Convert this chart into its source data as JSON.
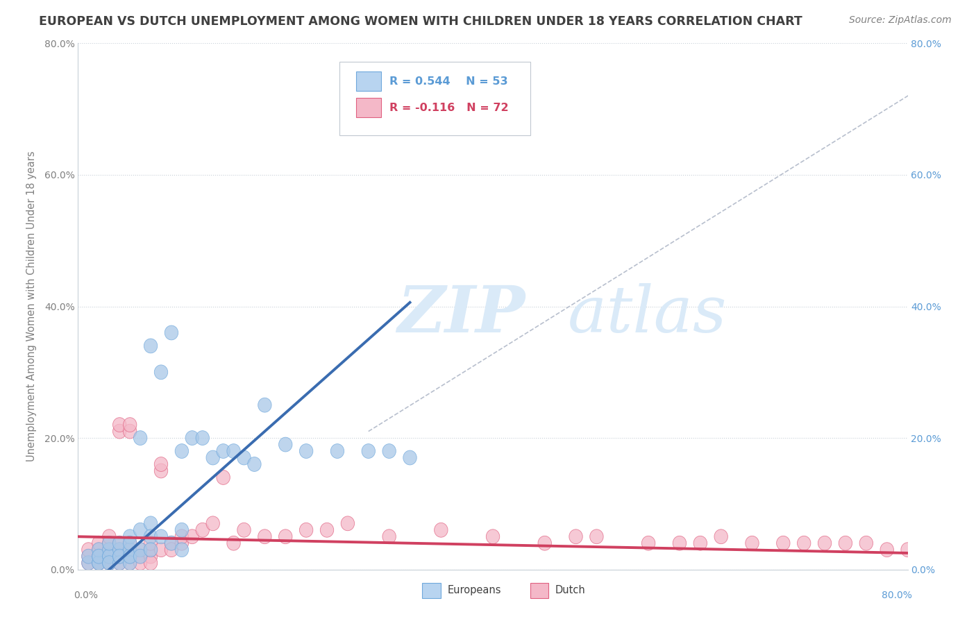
{
  "title": "EUROPEAN VS DUTCH UNEMPLOYMENT AMONG WOMEN WITH CHILDREN UNDER 18 YEARS CORRELATION CHART",
  "source": "Source: ZipAtlas.com",
  "ylabel": "Unemployment Among Women with Children Under 18 years",
  "xmin": 0.0,
  "xmax": 0.8,
  "ymin": 0.0,
  "ymax": 0.8,
  "ytick_vals": [
    0.0,
    0.2,
    0.4,
    0.6,
    0.8
  ],
  "ytick_labels": [
    "0.0%",
    "20.0%",
    "40.0%",
    "60.0%",
    "80.0%"
  ],
  "europeans_R": 0.544,
  "europeans_N": 53,
  "dutch_R": -0.116,
  "dutch_N": 72,
  "europeans_color": "#a8c8e8",
  "europeans_edge": "#6fa8dc",
  "dutch_color": "#f4b8c8",
  "dutch_edge": "#e06080",
  "europeans_line_color": "#3a6cb0",
  "dutch_line_color": "#d04060",
  "grey_line_color": "#b0b8c8",
  "background_color": "#ffffff",
  "grid_color": "#c8d0d8",
  "title_color": "#404040",
  "source_color": "#808080",
  "label_color_left": "#808080",
  "label_color_right": "#5b9bd5",
  "watermark_color": "#daeaf8",
  "legend_eu_color": "#b8d4f0",
  "legend_du_color": "#f4b8c8",
  "eu_x": [
    0.01,
    0.01,
    0.02,
    0.02,
    0.02,
    0.02,
    0.02,
    0.03,
    0.03,
    0.03,
    0.03,
    0.03,
    0.03,
    0.04,
    0.04,
    0.04,
    0.04,
    0.04,
    0.05,
    0.05,
    0.05,
    0.05,
    0.05,
    0.05,
    0.06,
    0.06,
    0.06,
    0.06,
    0.07,
    0.07,
    0.07,
    0.07,
    0.08,
    0.08,
    0.09,
    0.09,
    0.1,
    0.1,
    0.1,
    0.11,
    0.12,
    0.13,
    0.14,
    0.15,
    0.16,
    0.17,
    0.18,
    0.2,
    0.22,
    0.25,
    0.28,
    0.3,
    0.32
  ],
  "eu_y": [
    0.01,
    0.02,
    0.01,
    0.02,
    0.01,
    0.03,
    0.02,
    0.02,
    0.01,
    0.03,
    0.02,
    0.04,
    0.01,
    0.02,
    0.03,
    0.01,
    0.04,
    0.02,
    0.02,
    0.03,
    0.01,
    0.05,
    0.02,
    0.04,
    0.2,
    0.03,
    0.06,
    0.02,
    0.34,
    0.07,
    0.05,
    0.03,
    0.3,
    0.05,
    0.36,
    0.04,
    0.18,
    0.06,
    0.03,
    0.2,
    0.2,
    0.17,
    0.18,
    0.18,
    0.17,
    0.16,
    0.25,
    0.19,
    0.18,
    0.18,
    0.18,
    0.18,
    0.17
  ],
  "du_x": [
    0.01,
    0.01,
    0.01,
    0.02,
    0.02,
    0.02,
    0.02,
    0.02,
    0.02,
    0.03,
    0.03,
    0.03,
    0.03,
    0.03,
    0.03,
    0.03,
    0.03,
    0.04,
    0.04,
    0.04,
    0.04,
    0.04,
    0.04,
    0.05,
    0.05,
    0.05,
    0.05,
    0.05,
    0.05,
    0.06,
    0.06,
    0.06,
    0.07,
    0.07,
    0.07,
    0.07,
    0.08,
    0.08,
    0.08,
    0.09,
    0.09,
    0.1,
    0.1,
    0.11,
    0.12,
    0.13,
    0.14,
    0.15,
    0.16,
    0.18,
    0.2,
    0.22,
    0.24,
    0.26,
    0.3,
    0.35,
    0.4,
    0.45,
    0.48,
    0.5,
    0.55,
    0.58,
    0.6,
    0.62,
    0.65,
    0.68,
    0.7,
    0.72,
    0.74,
    0.76,
    0.78,
    0.8
  ],
  "du_y": [
    0.02,
    0.01,
    0.03,
    0.02,
    0.01,
    0.03,
    0.02,
    0.04,
    0.01,
    0.02,
    0.01,
    0.03,
    0.02,
    0.04,
    0.01,
    0.05,
    0.02,
    0.21,
    0.22,
    0.03,
    0.02,
    0.04,
    0.01,
    0.21,
    0.22,
    0.03,
    0.02,
    0.04,
    0.01,
    0.02,
    0.03,
    0.01,
    0.02,
    0.03,
    0.01,
    0.04,
    0.03,
    0.15,
    0.16,
    0.04,
    0.03,
    0.04,
    0.05,
    0.05,
    0.06,
    0.07,
    0.14,
    0.04,
    0.06,
    0.05,
    0.05,
    0.06,
    0.06,
    0.07,
    0.05,
    0.06,
    0.05,
    0.04,
    0.05,
    0.05,
    0.04,
    0.04,
    0.04,
    0.05,
    0.04,
    0.04,
    0.04,
    0.04,
    0.04,
    0.04,
    0.03,
    0.03
  ],
  "grey_line_x0": 0.28,
  "grey_line_y0": 0.21,
  "grey_line_x1": 0.8,
  "grey_line_y1": 0.72
}
